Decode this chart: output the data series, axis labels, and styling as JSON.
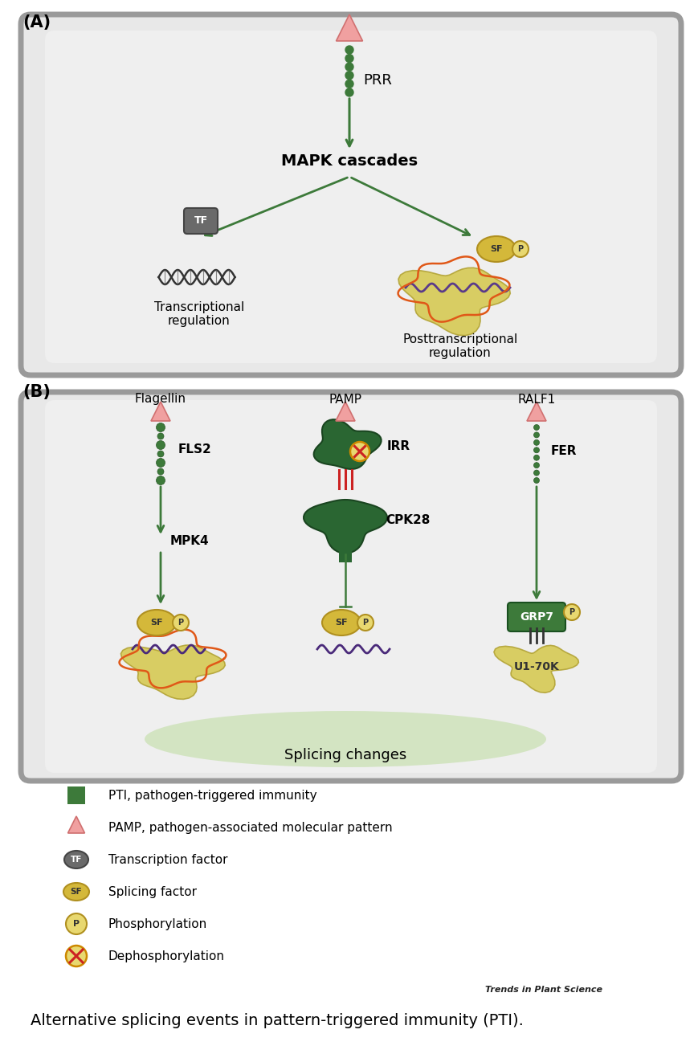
{
  "fig_width": 8.7,
  "fig_height": 13.07,
  "bg_color": "#ffffff",
  "green_dark": "#3d7a3a",
  "green_receptor": "#4a8c45",
  "pink_tri_fill": "#f0a0a0",
  "pink_tri_edge": "#d07070",
  "yellow_fill": "#d4b83a",
  "yellow_edge": "#b09020",
  "yellow_light": "#e8d870",
  "gray_tf": "#6a6a6a",
  "orange_mRNA": "#cc6622",
  "orange_squig": "#e05818",
  "panel_outer_fill": "#e8e8e8",
  "panel_outer_edge": "#9a9a9a",
  "panel_inner_fill": "#efefef",
  "red_marks": "#cc2222",
  "dark_green_irr": "#2a6632",
  "title_A": "(A)",
  "title_B": "(B)",
  "label_PRR": "PRR",
  "label_MAPK": "MAPK cascades",
  "label_transcriptional": "Transcriptional\nregulation",
  "label_posttranscriptional": "Posttranscriptional\nregulation",
  "label_Flagellin": "Flagellin",
  "label_PAMP_B": "PAMP",
  "label_RALF1": "RALF1",
  "label_FLS2": "FLS2",
  "label_IRR": "IRR",
  "label_FER": "FER",
  "label_MPK4": "MPK4",
  "label_CPK28": "CPK28",
  "label_GRP7": "GRP7",
  "label_U170K": "U1-70K",
  "label_splicing": "Splicing changes",
  "leg0_text": "PTI, pathogen-triggered immunity",
  "leg1_text": "PAMP, pathogen-associated molecular pattern",
  "leg2_text": "Transcription factor",
  "leg3_text": "Splicing factor",
  "leg4_text": "Phosphorylation",
  "leg5_text": "Dephosphorylation",
  "caption": "Alternative splicing events in pattern-triggered immunity (PTI).",
  "trends_label": "Trends in Plant Science"
}
